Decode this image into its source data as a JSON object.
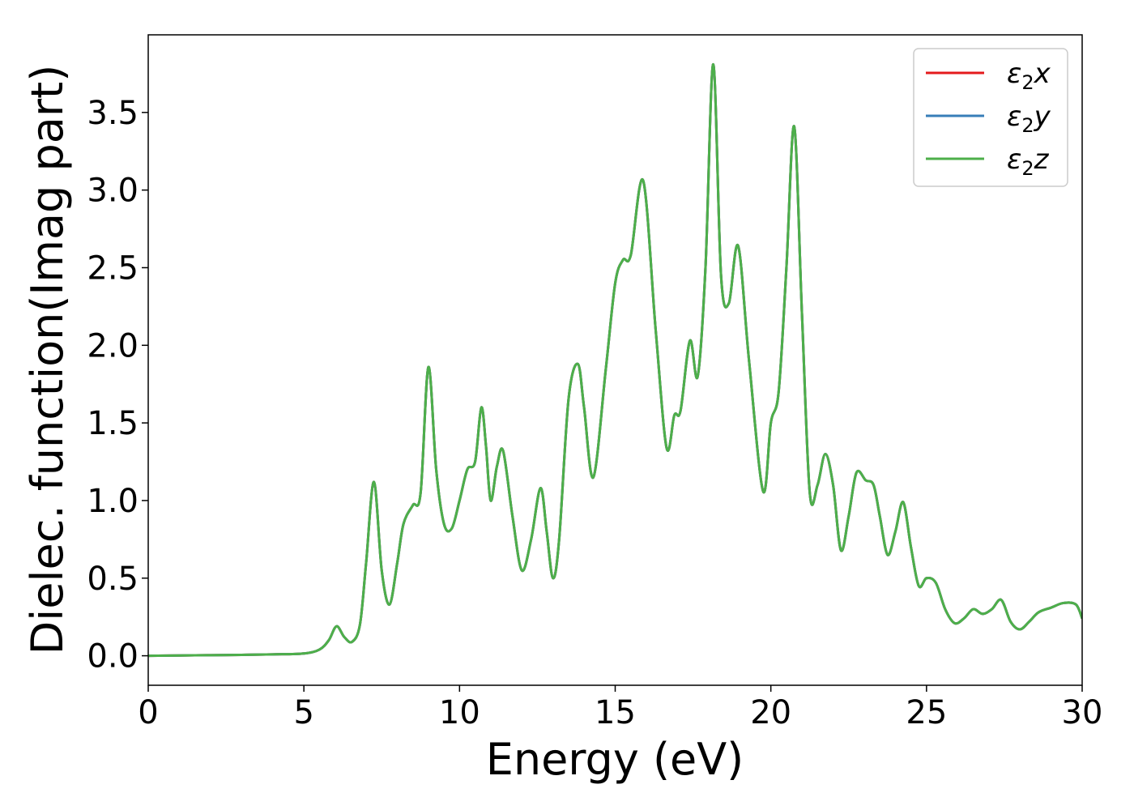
{
  "chart_data": {
    "type": "line",
    "title": "",
    "xlabel": "Energy (eV)",
    "ylabel": "Dielec. function(Imag part)",
    "xlim": [
      0,
      30
    ],
    "ylim": [
      -0.19,
      4.0
    ],
    "xticks": [
      0,
      5,
      10,
      15,
      20,
      25,
      30
    ],
    "xtick_labels": [
      "0",
      "5",
      "10",
      "15",
      "20",
      "25",
      "30"
    ],
    "yticks": [
      0.0,
      0.5,
      1.0,
      1.5,
      2.0,
      2.5,
      3.0,
      3.5
    ],
    "ytick_labels": [
      "0.0",
      "0.5",
      "1.0",
      "1.5",
      "2.0",
      "2.5",
      "3.0",
      "3.5"
    ],
    "grid": false,
    "legend_position": "top-right",
    "series": [
      {
        "name": "ε₂x",
        "color": "#e41a1c",
        "legend": {
          "sym": "ε",
          "sub": "2",
          "var": "x"
        }
      },
      {
        "name": "ε₂y",
        "color": "#377eb8",
        "legend": {
          "sym": "ε",
          "sub": "2",
          "var": "y"
        }
      },
      {
        "name": "ε₂z",
        "color": "#4daf4a",
        "legend": {
          "sym": "ε",
          "sub": "2",
          "var": "z"
        }
      }
    ],
    "x": [
      0,
      1,
      2,
      3,
      4,
      5,
      5.5,
      5.8,
      6.05,
      6.3,
      6.55,
      6.8,
      7.0,
      7.25,
      7.5,
      7.75,
      8.0,
      8.2,
      8.5,
      8.75,
      9.0,
      9.25,
      9.5,
      9.75,
      10.0,
      10.25,
      10.5,
      10.7,
      10.85,
      11.0,
      11.2,
      11.4,
      11.7,
      12.0,
      12.3,
      12.6,
      12.8,
      13.0,
      13.2,
      13.5,
      13.8,
      14.0,
      14.3,
      14.7,
      15.0,
      15.25,
      15.5,
      15.9,
      16.3,
      16.65,
      16.9,
      17.1,
      17.4,
      17.65,
      17.9,
      18.15,
      18.4,
      18.65,
      18.95,
      19.3,
      19.75,
      20.0,
      20.25,
      20.5,
      20.75,
      21.0,
      21.25,
      21.5,
      21.75,
      22.0,
      22.25,
      22.5,
      22.75,
      23.05,
      23.3,
      23.5,
      23.75,
      24.0,
      24.25,
      24.5,
      24.75,
      25.0,
      25.3,
      25.6,
      25.9,
      26.2,
      26.5,
      26.8,
      27.1,
      27.4,
      27.7,
      28.0,
      28.3,
      28.6,
      29.0,
      29.4,
      29.8,
      30.0
    ],
    "values": [
      0.0,
      0.002,
      0.004,
      0.006,
      0.009,
      0.015,
      0.04,
      0.1,
      0.19,
      0.12,
      0.09,
      0.2,
      0.6,
      1.12,
      0.55,
      0.33,
      0.6,
      0.85,
      0.97,
      1.05,
      1.86,
      1.2,
      0.85,
      0.82,
      1.0,
      1.2,
      1.25,
      1.6,
      1.35,
      1.0,
      1.22,
      1.32,
      0.9,
      0.55,
      0.75,
      1.08,
      0.8,
      0.5,
      0.75,
      1.65,
      1.88,
      1.6,
      1.15,
      1.85,
      2.4,
      2.55,
      2.58,
      3.06,
      2.1,
      1.34,
      1.55,
      1.58,
      2.03,
      1.8,
      2.5,
      3.81,
      2.45,
      2.27,
      2.64,
      1.9,
      1.06,
      1.5,
      1.7,
      2.5,
      3.41,
      2.2,
      1.05,
      1.1,
      1.3,
      1.1,
      0.68,
      0.9,
      1.18,
      1.13,
      1.1,
      0.9,
      0.65,
      0.8,
      0.99,
      0.7,
      0.45,
      0.5,
      0.47,
      0.3,
      0.21,
      0.24,
      0.3,
      0.27,
      0.3,
      0.36,
      0.22,
      0.17,
      0.22,
      0.28,
      0.31,
      0.34,
      0.33,
      0.24
    ]
  }
}
